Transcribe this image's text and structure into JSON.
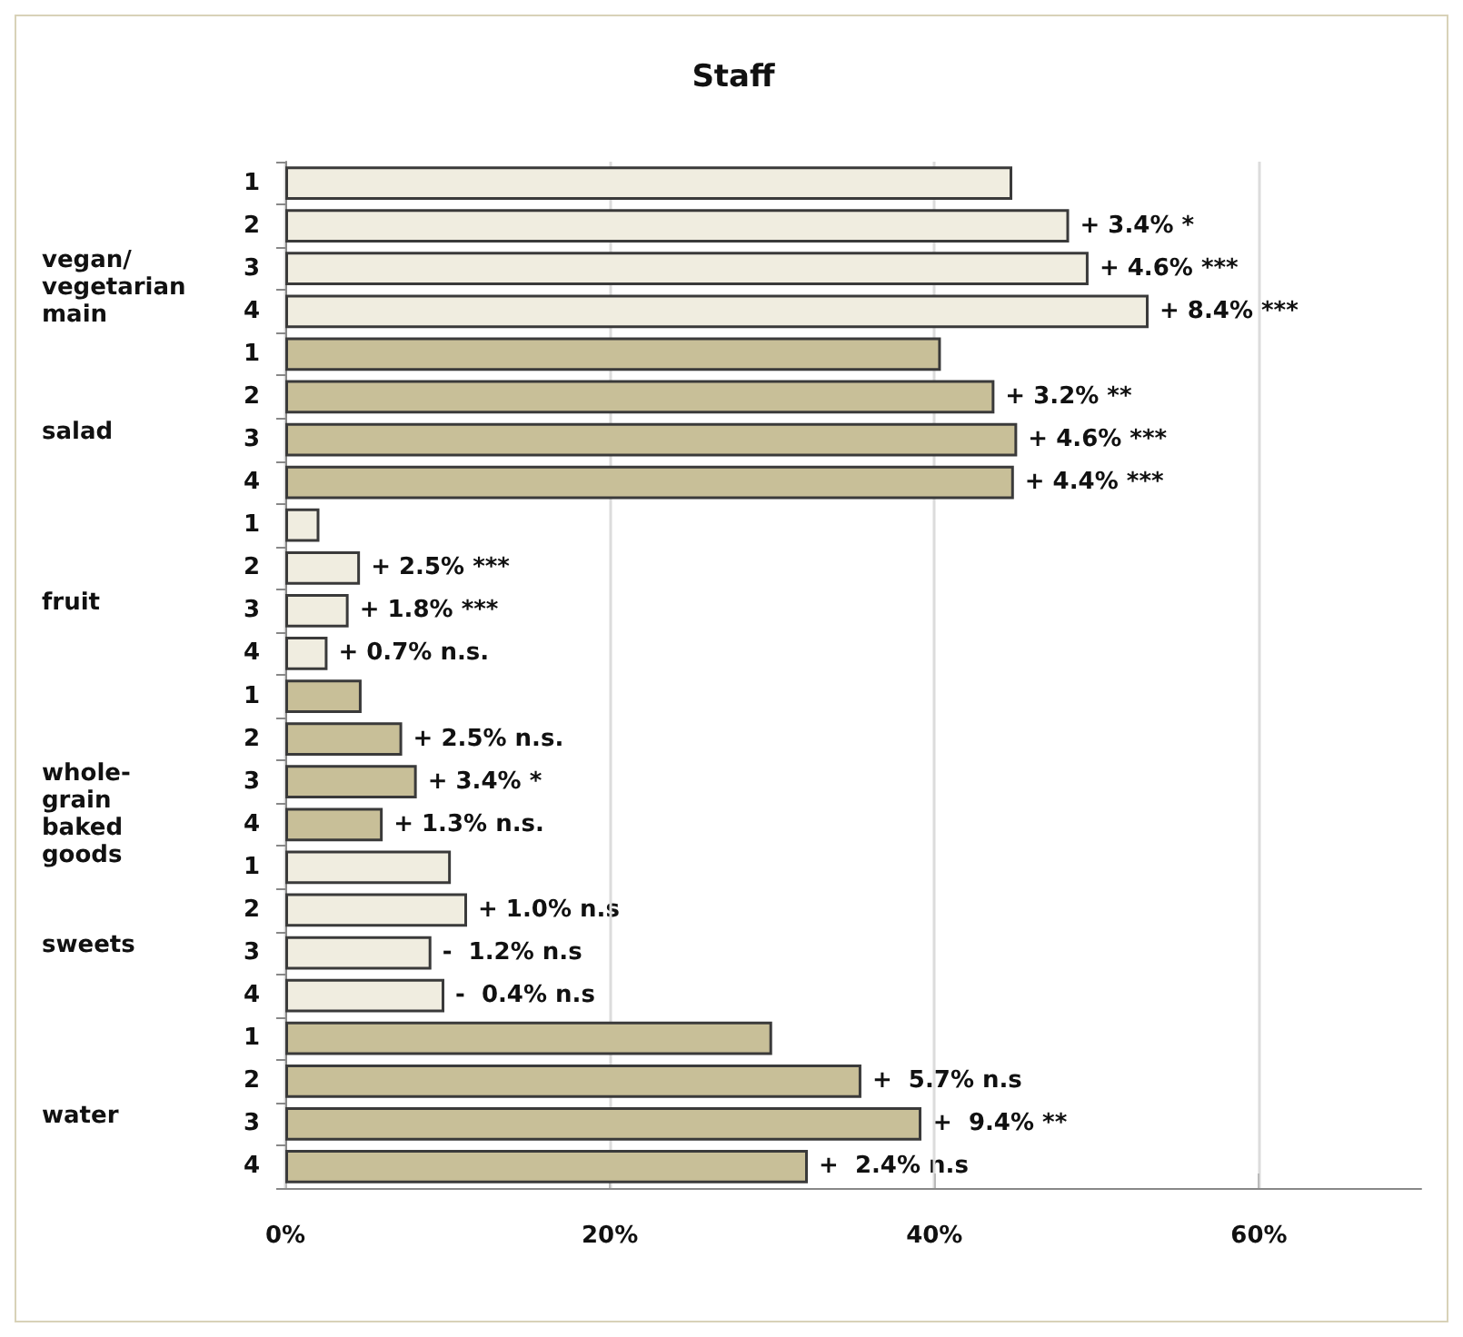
{
  "chart_data": {
    "type": "bar",
    "orientation": "horizontal",
    "title": "Staff",
    "categories": [
      "1",
      "2",
      "3",
      "4",
      "1",
      "2",
      "3",
      "4",
      "1",
      "2",
      "3",
      "4",
      "1",
      "2",
      "3",
      "4",
      "1",
      "2",
      "3",
      "4",
      "1",
      "2",
      "3",
      "4"
    ],
    "values": [
      44.8,
      48.3,
      49.5,
      53.2,
      40.4,
      43.7,
      45.1,
      44.9,
      2.1,
      4.6,
      3.9,
      2.6,
      4.7,
      7.2,
      8.1,
      6.0,
      10.2,
      11.2,
      9.0,
      9.8,
      30.0,
      35.5,
      39.2,
      32.2
    ],
    "colors": [
      "#f0ede0",
      "#f0ede0",
      "#f0ede0",
      "#f0ede0",
      "#c8bf98",
      "#c8bf98",
      "#c8bf98",
      "#c8bf98",
      "#f0ede0",
      "#f0ede0",
      "#f0ede0",
      "#f0ede0",
      "#c8bf98",
      "#c8bf98",
      "#c8bf98",
      "#c8bf98",
      "#f0ede0",
      "#f0ede0",
      "#f0ede0",
      "#f0ede0",
      "#c8bf98",
      "#c8bf98",
      "#c8bf98",
      "#c8bf98"
    ],
    "annotations": [
      "vegan/\nvegetarian\nmain",
      "salad",
      "fruit",
      "whole-\ngrain\nbaked\ngoods",
      "sweets",
      "water",
      {
        "text": "+ 3.4% *",
        "x": 48.3
      },
      {
        "text": "+ 4.6% ***",
        "x": 49.5
      },
      {
        "text": "+ 8.4% ***",
        "x": 53.2
      },
      {
        "text": "+ 3.2% **",
        "x": 43.7
      },
      {
        "text": "+ 4.6% ***",
        "x": 45.1
      },
      {
        "text": "+ 4.4% ***",
        "x": 44.9
      },
      {
        "text": "+ 2.5% ***",
        "x": 4.6
      },
      {
        "text": "+ 1.8% ***",
        "x": 3.9
      },
      {
        "text": "+ 0.7% n.s.",
        "x": 2.6
      },
      {
        "text": "+ 2.5% n.s.",
        "x": 7.2
      },
      {
        "text": "+ 3.4% *",
        "x": 8.1
      },
      {
        "text": "+ 1.3% n.s.",
        "x": 6.0
      },
      {
        "text": "+ 1.0% n.s",
        "x": 11.2
      },
      {
        "text": "-  1.2% n.s",
        "x": 9.0
      },
      {
        "text": "-  0.4% n.s",
        "x": 9.8
      },
      {
        "text": "+  5.7% n.s",
        "x": 35.5
      },
      {
        "text": "+  9.4% **",
        "x": 39.2
      },
      {
        "text": "+  2.4% n.s",
        "x": 32.2
      }
    ],
    "xlim": [
      0,
      70
    ],
    "xticks": [
      {
        "value": 0,
        "label": "0%"
      },
      {
        "value": 20,
        "label": "20%"
      },
      {
        "value": 40,
        "label": "40%"
      },
      {
        "value": 60,
        "label": "60%"
      }
    ],
    "grid": "x"
  }
}
